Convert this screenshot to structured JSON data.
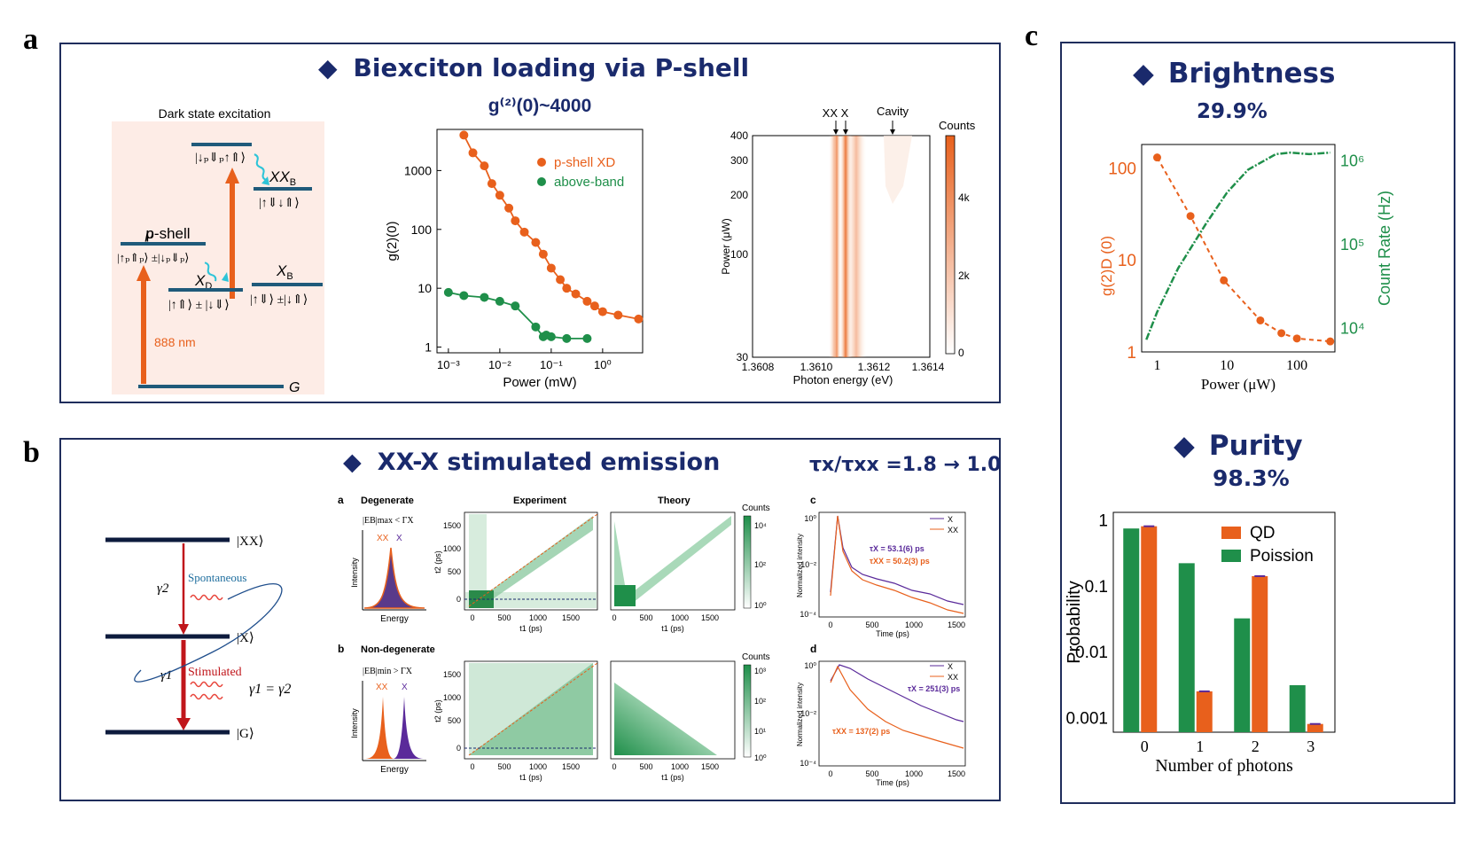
{
  "labels": {
    "a": "a",
    "b": "b",
    "c": "c"
  },
  "panel_a": {
    "title": "Biexciton loading via P-shell",
    "bullet": "◆",
    "diagram": {
      "header": "Dark state excitation",
      "top_level": "|↓ₚ⇓ₚ↑⇑⟩",
      "xxb": "XX",
      "xxb_sub": "B",
      "xxb_state": "|↑⇓↓⇑⟩",
      "pshell": "p-shell",
      "pshell_state": "|↑ₚ⇑ₚ⟩ ±|↓ₚ⇓ₚ⟩",
      "xd": "X",
      "xd_sub": "D",
      "xd_state": "|↑⇑⟩ ± |↓⇓⟩",
      "xb": "X",
      "xb_sub": "B",
      "xb_state": "|↑⇓⟩ ±|↓⇑⟩",
      "wavelength": "888 nm",
      "ground": "G"
    },
    "g2_chart_title": "g⁽²⁾(0)~4000",
    "heatmap": {
      "annotations": [
        "XX",
        "X",
        "Cavity"
      ],
      "colorbar_title": "Counts",
      "colorbar_ticks": [
        "4k",
        "2k",
        "0"
      ],
      "ylabel": "Power (μW)",
      "xlabel": "Photon energy (eV)",
      "yticks": [
        "400",
        "300",
        "200",
        "100",
        "30"
      ],
      "xticks": [
        "1.3608",
        "1.3610",
        "1.3612",
        "1.3614"
      ]
    }
  },
  "panel_b": {
    "title": "XX-X stimulated emission",
    "ratio": "τx/τxx =1.8 → 1.0",
    "bullet": "◆",
    "diagram": {
      "xx": "|XX⟩",
      "x": "|X⟩",
      "g": "|G⟩",
      "gamma2": "γ2",
      "gamma1": "γ1",
      "spontaneous": "Spontaneous",
      "stimulated": "Stimulated",
      "equality": "γ1 = γ2"
    },
    "inset": {
      "sub_a": "a",
      "sub_b": "b",
      "sub_c": "c",
      "sub_d": "d",
      "degenerate": "Degenerate",
      "nondegenerate": "Non-degenerate",
      "eb_max": "|EB|max < ΓX",
      "eb_min": "|EB|min > ΓX",
      "experiment": "Experiment",
      "theory": "Theory",
      "counts": "Counts",
      "intensity": "Intensity",
      "energy": "Energy",
      "xx_label": "XX",
      "x_label": "X",
      "t1": "t1 (ps)",
      "t2": "t2 (ps)",
      "norm_intensity": "Normalized intensity",
      "time": "Time (ps)",
      "tau_x_c": "τX = 53.1(6) ps",
      "tau_xx_c": "τXX = 50.2(3) ps",
      "tau_x_d": "τX = 251(3) ps",
      "tau_xx_d": "τXX = 137(2) ps",
      "t_ticks": [
        "0",
        "500",
        "1000",
        "1500"
      ],
      "cb_top": [
        "10⁴",
        "10²",
        "10⁰"
      ],
      "cb_bot": [
        "10³",
        "10²",
        "10¹",
        "10⁰"
      ],
      "decay_y": [
        "10⁰",
        "10⁻²",
        "10⁻⁴"
      ]
    }
  },
  "panel_c": {
    "bullet": "◆",
    "brightness_title": "Brightness",
    "brightness_value": "29.9%",
    "purity_title": "Purity",
    "purity_value": "98.3%",
    "colors": {
      "orange": "#e8601c",
      "green": "#1f8f4a",
      "navy": "#1a2a6c"
    }
  },
  "chart_data": [
    {
      "type": "scatter",
      "title": "g⁽²⁾(0)~4000",
      "xlabel": "Power (mW)",
      "ylabel": "g(2)(0)",
      "xscale": "log",
      "yscale": "log",
      "xlim": [
        0.0006,
        6
      ],
      "ylim": [
        0.8,
        5000
      ],
      "xticks": [
        "10⁻³",
        "10⁻²",
        "10⁻¹",
        "10⁰"
      ],
      "yticks": [
        "1000",
        "100",
        "10",
        "1"
      ],
      "legend_position": "top-right",
      "series": [
        {
          "name": "p-shell XD",
          "color": "#e8601c",
          "x": [
            0.002,
            0.003,
            0.005,
            0.007,
            0.01,
            0.015,
            0.02,
            0.03,
            0.05,
            0.07,
            0.1,
            0.15,
            0.2,
            0.3,
            0.5,
            0.7,
            1,
            2,
            5
          ],
          "y": [
            4000,
            2000,
            1200,
            600,
            380,
            230,
            140,
            90,
            60,
            38,
            22,
            14,
            10,
            8,
            6,
            5,
            4,
            3.5,
            3
          ]
        },
        {
          "name": "above-band",
          "color": "#1f8f4a",
          "x": [
            0.001,
            0.002,
            0.005,
            0.01,
            0.02,
            0.05,
            0.07,
            0.08,
            0.1,
            0.2,
            0.5
          ],
          "y": [
            8.5,
            7.5,
            7,
            6,
            5,
            2.2,
            1.5,
            1.6,
            1.5,
            1.4,
            1.4
          ]
        }
      ]
    },
    {
      "type": "line",
      "title": "Brightness",
      "xlabel": "Power (μW)",
      "ylabel": "g(2)D (0)",
      "y2label": "Count Rate (Hz)",
      "xscale": "log",
      "yscale": "log",
      "xlim": [
        0.6,
        350
      ],
      "ylim": [
        1,
        180
      ],
      "y2lim": [
        5000,
        1500000
      ],
      "xticks": [
        "1",
        "10",
        "100"
      ],
      "yticks": [
        "100",
        "10",
        "1"
      ],
      "y2ticks": [
        "10⁶",
        "10⁵",
        "10⁴"
      ],
      "series": [
        {
          "name": "g(2)D (0)",
          "color": "#e8601c",
          "axis": "left",
          "x": [
            1,
            3,
            9,
            30,
            60,
            100,
            300
          ],
          "y": [
            130,
            30,
            6,
            2.2,
            1.6,
            1.4,
            1.3
          ]
        },
        {
          "name": "Count Rate (Hz)",
          "color": "#1f8f4a",
          "axis": "right",
          "x": [
            0.7,
            1,
            2,
            5,
            10,
            20,
            50,
            80,
            150,
            300
          ],
          "y": [
            7000,
            15000,
            50000,
            170000,
            400000,
            750000,
            1150000,
            1200000,
            1150000,
            1200000
          ]
        }
      ]
    },
    {
      "type": "bar",
      "title": "Purity",
      "xlabel": "Number of photons",
      "ylabel": "Probability",
      "yscale": "log",
      "ylim": [
        0.0006,
        1.3
      ],
      "categories": [
        "0",
        "1",
        "2",
        "3"
      ],
      "yticks": [
        "1",
        "0.1",
        "0.01",
        "0.001"
      ],
      "legend_position": "top-right",
      "series": [
        {
          "name": "QD",
          "color": "#e8601c",
          "values": [
            0.8,
            0.0025,
            0.14,
            0.0008
          ]
        },
        {
          "name": "Poission",
          "color": "#1f8f4a",
          "values": [
            0.74,
            0.22,
            0.032,
            0.0031
          ]
        }
      ]
    }
  ]
}
